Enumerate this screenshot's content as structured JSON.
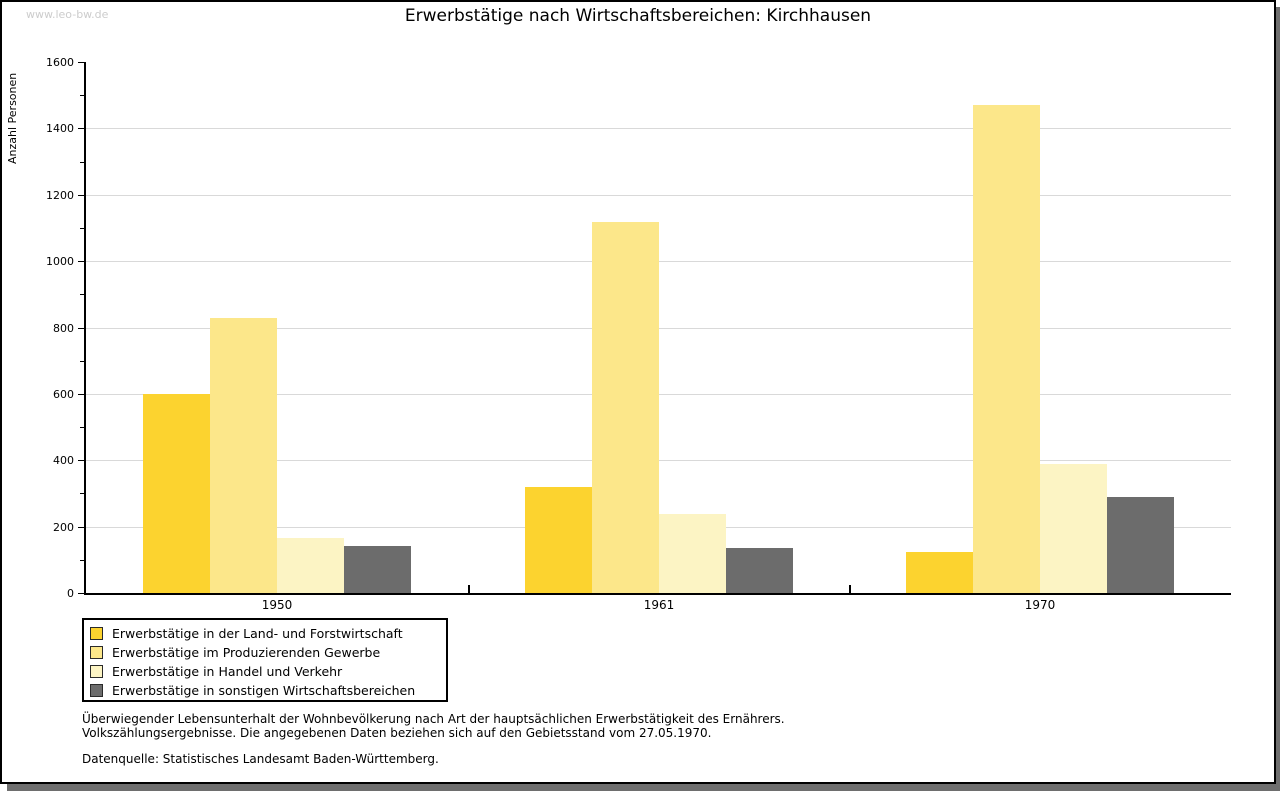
{
  "watermark": "www.leo-bw.de",
  "header": {
    "title": "Erwerbstätige nach Wirtschaftsbereichen: Kirchhausen"
  },
  "chart_data": {
    "type": "bar",
    "title": "Erwerbstätige nach Wirtschaftsbereichen: Kirchhausen",
    "ylabel": "Anzahl Personen",
    "xlabel": "",
    "categories": [
      "1950",
      "1961",
      "1970"
    ],
    "series": [
      {
        "name": "Erwerbstätige in der Land- und Forstwirtschaft",
        "color": "#FCD32F",
        "values": [
          600,
          318,
          125
        ]
      },
      {
        "name": "Erwerbstätige im Produzierenden Gewerbe",
        "color": "#FCE78A",
        "values": [
          828,
          1118,
          1470
        ]
      },
      {
        "name": "Erwerbstätige in Handel und Verkehr",
        "color": "#FCF4C4",
        "values": [
          165,
          238,
          390
        ]
      },
      {
        "name": "Erwerbstätige in sonstigen Wirtschaftsbereichen",
        "color": "#6C6C6C",
        "values": [
          143,
          135,
          288
        ]
      }
    ],
    "ylim": [
      0,
      1600
    ],
    "ytick_step": 200,
    "ytick_minor_step": 100,
    "grid": true,
    "gridline_color": "#d9d9d9",
    "legend_position": "bottom-left"
  },
  "footer": {
    "line1": "Überwiegender Lebensunterhalt der Wohnbevölkerung nach Art der hauptsächlichen Erwerbstätigkeit des Ernährers.",
    "line2": "Volkszählungsergebnisse. Die angegebenen Daten beziehen sich auf den Gebietsstand vom 27.05.1970.",
    "source": "Datenquelle: Statistisches Landesamt Baden-Württemberg."
  }
}
